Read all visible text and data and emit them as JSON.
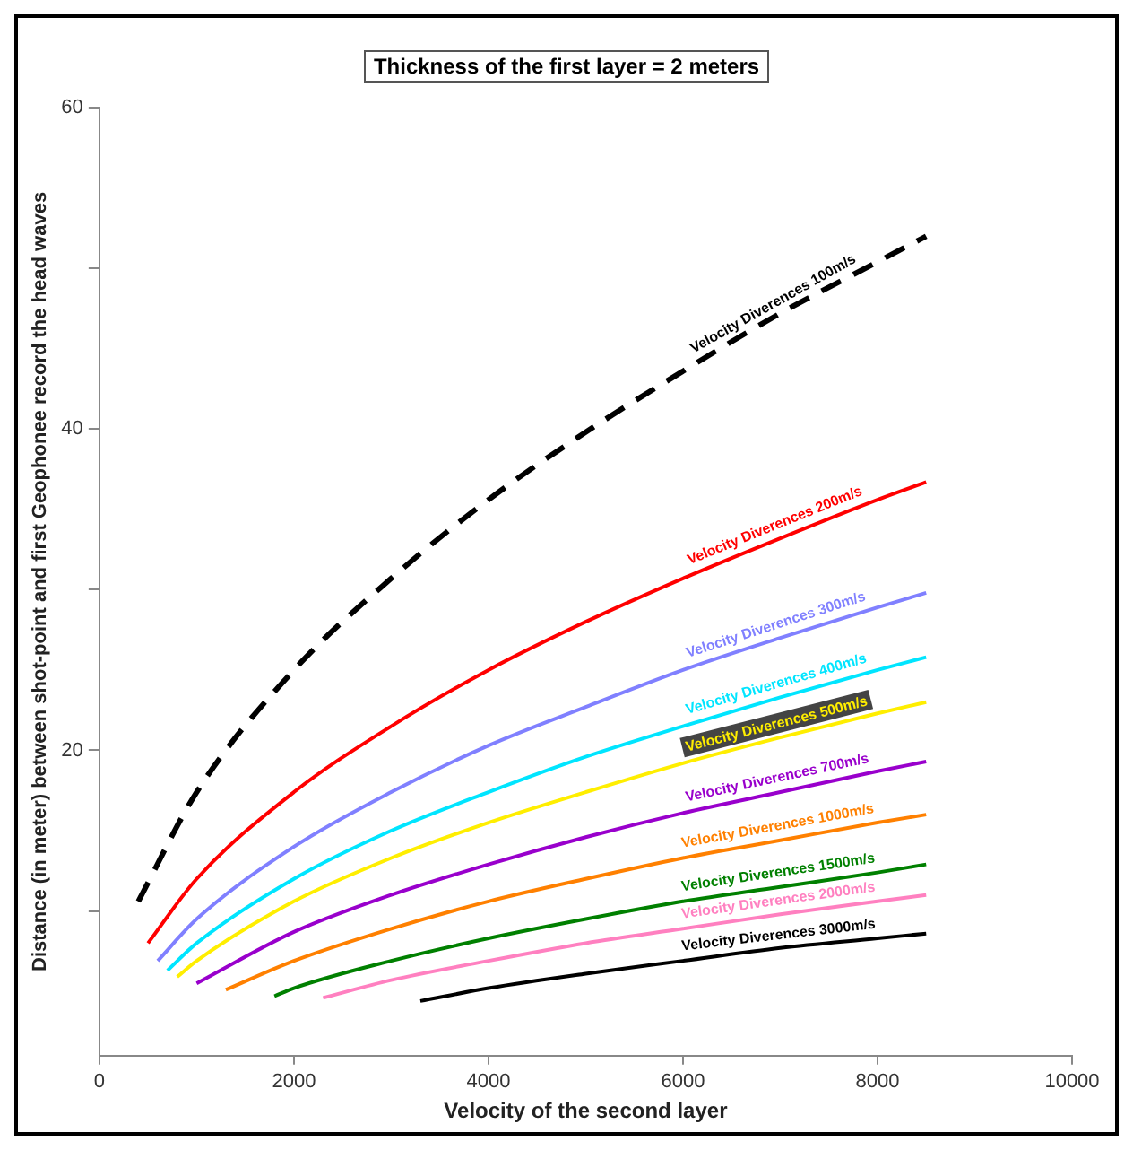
{
  "chart_data": {
    "type": "line",
    "title": "Thickness of the first layer = 2 meters",
    "xlabel": "Velocity of the second layer",
    "ylabel": "Distance (in meter) between shot-point and first Geophonee record the head waves",
    "xlim": [
      0,
      10000
    ],
    "xticks": [
      0,
      2000,
      4000,
      6000,
      8000,
      10000
    ],
    "ylim": [
      1,
      60
    ],
    "yticks": [
      {
        "value": 10,
        "label": null
      },
      20,
      {
        "value": 30,
        "label": null
      },
      40,
      {
        "value": 50,
        "label": null
      },
      60
    ],
    "grid": false,
    "legend": false,
    "marker": "none",
    "series": [
      {
        "name": "Velocity Diverences 100m/s",
        "color": "#000000",
        "line_style": "dashed",
        "x": [
          400,
          1000,
          2000,
          3000,
          4000,
          5000,
          6000,
          7000,
          8000,
          8500
        ],
        "values": [
          10.6,
          17.4,
          25.0,
          30.7,
          35.6,
          39.8,
          43.6,
          47.2,
          50.4,
          52.0
        ]
      },
      {
        "name": "Velocity Diverences 200m/s",
        "color": "#ff0000",
        "x": [
          500,
          1000,
          2000,
          3000,
          4000,
          5000,
          6000,
          7000,
          8000,
          8500
        ],
        "values": [
          8.0,
          12.0,
          17.4,
          21.5,
          25.0,
          28.0,
          30.7,
          33.2,
          35.6,
          36.7
        ]
      },
      {
        "name": "Velocity Diverences 300m/s",
        "color": "#8080ff",
        "x": [
          600,
          1000,
          2000,
          3000,
          4000,
          5000,
          6000,
          7000,
          8000,
          8500
        ],
        "values": [
          6.9,
          9.5,
          14.0,
          17.4,
          20.3,
          22.7,
          25.0,
          27.0,
          28.9,
          29.8
        ]
      },
      {
        "name": "Velocity Diverences 400m/s",
        "color": "#00e5ff",
        "x": [
          700,
          1000,
          2000,
          3000,
          4000,
          5000,
          6000,
          7000,
          8000,
          8500
        ],
        "values": [
          6.3,
          8.0,
          12.0,
          15.0,
          17.4,
          19.6,
          21.5,
          23.3,
          25.0,
          25.8
        ]
      },
      {
        "name": "Velocity Diverences 500m/s",
        "color": "#ffee00",
        "x": [
          800,
          1000,
          2000,
          3000,
          4000,
          5000,
          6000,
          7000,
          8000,
          8500
        ],
        "values": [
          5.9,
          6.9,
          10.6,
          13.3,
          15.5,
          17.4,
          19.2,
          20.8,
          22.3,
          23.0
        ]
      },
      {
        "name": "Velocity Diverences 700m/s",
        "color": "#9900cc",
        "x": [
          1000,
          2000,
          3000,
          4000,
          5000,
          6000,
          7000,
          8000,
          8500
        ],
        "values": [
          5.5,
          8.7,
          11.0,
          12.9,
          14.6,
          16.1,
          17.4,
          18.7,
          19.3
        ]
      },
      {
        "name": "Velocity Diverences 1000m/s",
        "color": "#ff8000",
        "x": [
          1300,
          2000,
          3000,
          4000,
          5000,
          6000,
          7000,
          8000,
          8500
        ],
        "values": [
          5.1,
          6.9,
          8.9,
          10.6,
          12.0,
          13.3,
          14.4,
          15.5,
          16.0
        ]
      },
      {
        "name": "Velocity Diverences 1500m/s",
        "color": "#008000",
        "x": [
          1800,
          2000,
          3000,
          4000,
          5000,
          6000,
          7000,
          8000,
          8500
        ],
        "values": [
          4.7,
          5.2,
          6.9,
          8.3,
          9.5,
          10.6,
          11.5,
          12.4,
          12.9
        ]
      },
      {
        "name": "Velocity Diverences 2000m/s",
        "color": "#ff80c0",
        "x": [
          2300,
          3000,
          4000,
          5000,
          6000,
          7000,
          8000,
          8500
        ],
        "values": [
          4.6,
          5.7,
          6.9,
          8.0,
          8.9,
          9.8,
          10.6,
          11.0
        ]
      },
      {
        "name": "Velocity Diverences 3000m/s",
        "color": "#000000",
        "x": [
          3300,
          4000,
          5000,
          6000,
          7000,
          8000,
          8500
        ],
        "values": [
          4.4,
          5.2,
          6.1,
          6.9,
          7.7,
          8.3,
          8.6
        ]
      }
    ]
  }
}
